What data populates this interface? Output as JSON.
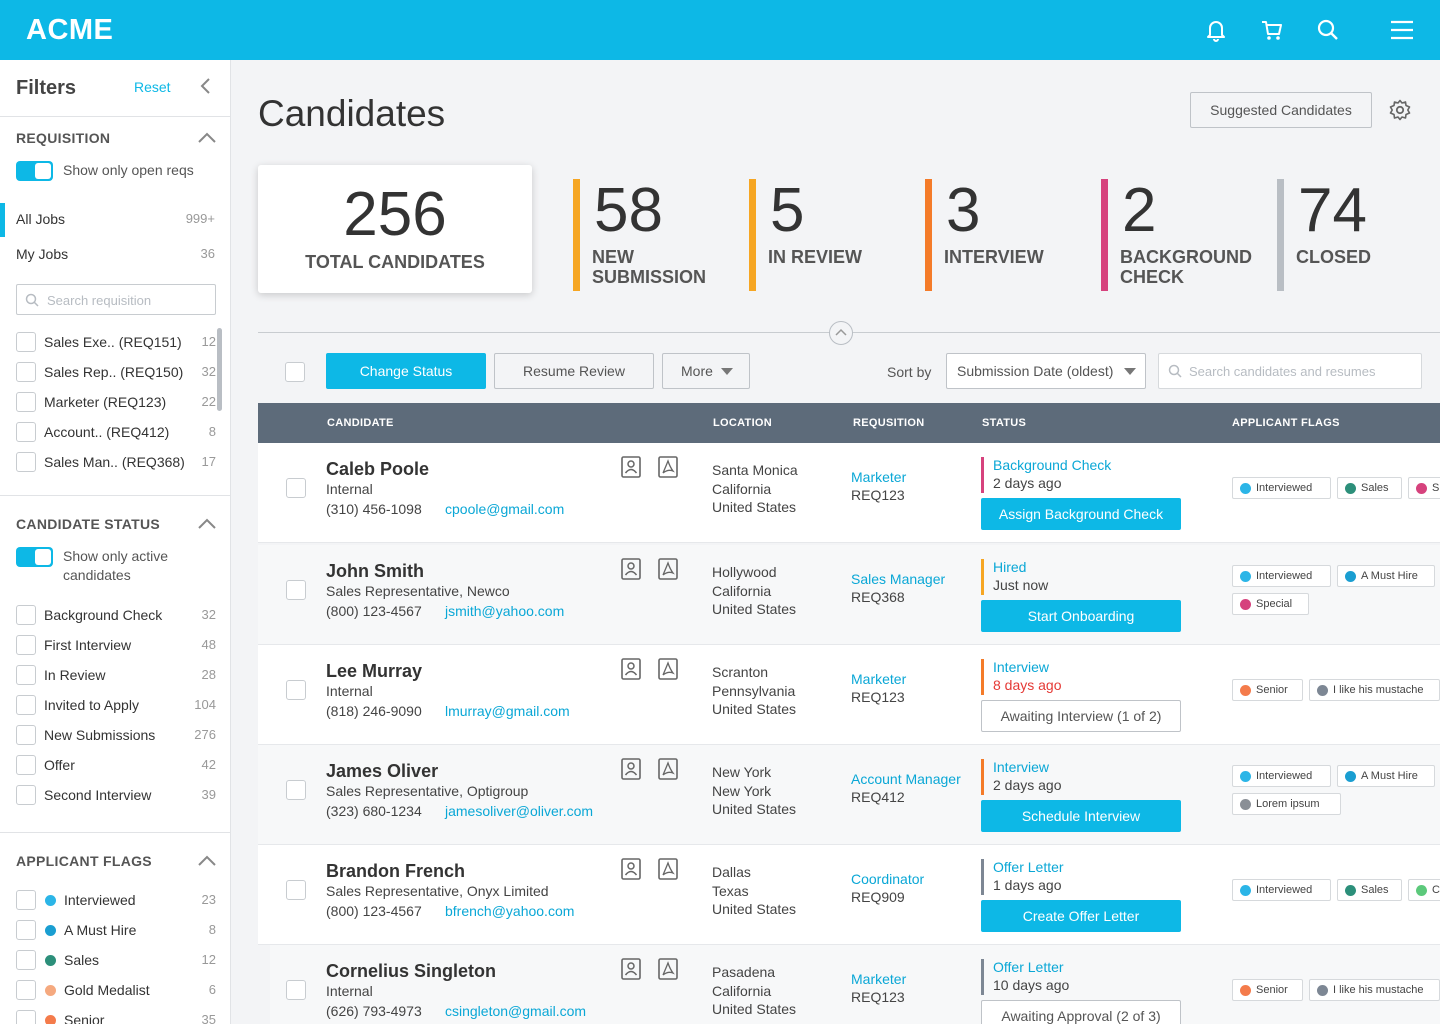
{
  "app": {
    "logo": "ACME"
  },
  "colors": {
    "accent": "#0db8e6",
    "new_submission": "#f6a623",
    "in_review": "#f6a623",
    "interview": "#f47b29",
    "background_check": "#d6427d",
    "closed": "#b9bec4",
    "interviewed": "#2bb5e7",
    "a_must_hire": "#1a9ed1",
    "sales": "#2c8f7a",
    "gold_medalist": "#f5a97f",
    "senior": "#f47b4b",
    "special": "#d6427d",
    "mustache": "#7d8794",
    "lorem": "#8a8f96",
    "cl": "#5cc97b"
  },
  "sidebar": {
    "title": "Filters",
    "reset": "Reset",
    "requisition": {
      "heading": "REQUISITION",
      "toggle_label": "Show only open reqs",
      "jobs": [
        {
          "label": "All Jobs",
          "count": "999+"
        },
        {
          "label": "My Jobs",
          "count": "36"
        }
      ],
      "search_placeholder": "Search requisition",
      "items": [
        {
          "label": "Sales Exe.. (REQ151)",
          "count": "12"
        },
        {
          "label": "Sales Rep.. (REQ150)",
          "count": "32"
        },
        {
          "label": "Marketer (REQ123)",
          "count": "22"
        },
        {
          "label": "Account.. (REQ412)",
          "count": "8"
        },
        {
          "label": "Sales Man.. (REQ368)",
          "count": "17"
        }
      ]
    },
    "candidate_status": {
      "heading": "CANDIDATE STATUS",
      "toggle_label": "Show only active candidates",
      "items": [
        {
          "label": "Background Check",
          "count": "32"
        },
        {
          "label": "First Interview",
          "count": "48"
        },
        {
          "label": "In Review",
          "count": "28"
        },
        {
          "label": "Invited to Apply",
          "count": "104"
        },
        {
          "label": "New Submissions",
          "count": "276"
        },
        {
          "label": "Offer",
          "count": "42"
        },
        {
          "label": "Second Interview",
          "count": "39"
        }
      ]
    },
    "applicant_flags": {
      "heading": "APPLICANT FLAGS",
      "items": [
        {
          "label": "Interviewed",
          "count": "23",
          "color": "#2bb5e7"
        },
        {
          "label": "A Must Hire",
          "count": "8",
          "color": "#1a9ed1"
        },
        {
          "label": "Sales",
          "count": "12",
          "color": "#2c8f7a"
        },
        {
          "label": "Gold Medalist",
          "count": "6",
          "color": "#f5a97f"
        },
        {
          "label": "Senior",
          "count": "35",
          "color": "#f47b4b"
        }
      ]
    }
  },
  "main": {
    "title": "Candidates",
    "suggested": "Suggested Candidates",
    "total": {
      "value": "256",
      "label": "TOTAL CANDIDATES"
    },
    "stats": [
      {
        "value": "58",
        "label": "NEW SUBMISSION"
      },
      {
        "value": "5",
        "label": "IN REVIEW"
      },
      {
        "value": "3",
        "label": "INTERVIEW"
      },
      {
        "value": "2",
        "label": "BACKGROUND CHECK"
      },
      {
        "value": "74",
        "label": "CLOSED"
      }
    ],
    "toolbar": {
      "change_status": "Change Status",
      "resume_review": "Resume Review",
      "more": "More",
      "sort_by": "Sort by",
      "sort_value": "Submission Date (oldest)",
      "search_placeholder": "Search candidates and resumes"
    },
    "columns": {
      "candidate": "CANDIDATE",
      "location": "LOCATION",
      "requisition": "REQUSITION",
      "status": "STATUS",
      "flags": "APPLICANT FLAGS"
    },
    "rows": [
      {
        "name": "Caleb Poole",
        "sub": "Internal",
        "phone": "(310) 456-1098",
        "email": "cpoole@gmail.com",
        "loc1": "Santa Monica",
        "loc2": "California",
        "loc3": "United States",
        "req_role": "Marketer",
        "req_id": "REQ123",
        "status": "Background Check",
        "time": "2 days ago",
        "action": "Assign Background Check",
        "flags": [
          {
            "label": "Interviewed"
          },
          {
            "label": "Sales"
          },
          {
            "label": "Sp"
          }
        ]
      },
      {
        "name": "John Smith",
        "sub": "Sales Representative, Newco",
        "phone": "(800) 123-4567",
        "email": "jsmith@yahoo.com",
        "loc1": "Hollywood",
        "loc2": "California",
        "loc3": "United States",
        "req_role": "Sales Manager",
        "req_id": "REQ368",
        "status": "Hired",
        "time": "Just now",
        "action": "Start Onboarding",
        "flags": [
          {
            "label": "Interviewed"
          },
          {
            "label": "A Must Hire"
          },
          {
            "label": "Special"
          }
        ]
      },
      {
        "name": "Lee Murray",
        "sub": "Internal",
        "phone": "(818) 246-9090",
        "email": "lmurray@gmail.com",
        "loc1": "Scranton",
        "loc2": "Pennsylvania",
        "loc3": "United States",
        "req_role": "Marketer",
        "req_id": "REQ123",
        "status": "Interview",
        "time": "8 days ago",
        "action": "Awaiting Interview (1 of 2)",
        "flags": [
          {
            "label": "Senior"
          },
          {
            "label": "I like his mustache"
          }
        ]
      },
      {
        "name": "James Oliver",
        "sub": "Sales Representative, Optigroup",
        "phone": "(323) 680-1234",
        "email": "jamesoliver@oliver.com",
        "loc1": "New York",
        "loc2": "New York",
        "loc3": "United States",
        "req_role": "Account Manager",
        "req_id": "REQ412",
        "status": "Interview",
        "time": "2 days ago",
        "action": "Schedule Interview",
        "flags": [
          {
            "label": "Interviewed"
          },
          {
            "label": "A Must Hire"
          },
          {
            "label": "Lorem ipsum"
          }
        ]
      },
      {
        "name": "Brandon French",
        "sub": "Sales Representative, Onyx Limited",
        "phone": "(800) 123-4567",
        "email": "bfrench@yahoo.com",
        "loc1": "Dallas",
        "loc2": "Texas",
        "loc3": "United States",
        "req_role": "Coordinator",
        "req_id": "REQ909",
        "status": "Offer Letter",
        "time": "1 days ago",
        "action": "Create Offer Letter",
        "flags": [
          {
            "label": "Interviewed"
          },
          {
            "label": "Sales"
          },
          {
            "label": "Cl"
          }
        ]
      },
      {
        "name": "Cornelius Singleton",
        "sub": "Internal",
        "phone": "(626) 793-4973",
        "email": "csingleton@gmail.com",
        "loc1": "Pasadena",
        "loc2": "California",
        "loc3": "United States",
        "req_role": "Marketer",
        "req_id": "REQ123",
        "status": "Offer Letter",
        "time": "10 days ago",
        "action": "Awaiting Approval (2 of 3)",
        "flags": [
          {
            "label": "Senior"
          },
          {
            "label": "I like his mustache"
          }
        ]
      }
    ]
  }
}
